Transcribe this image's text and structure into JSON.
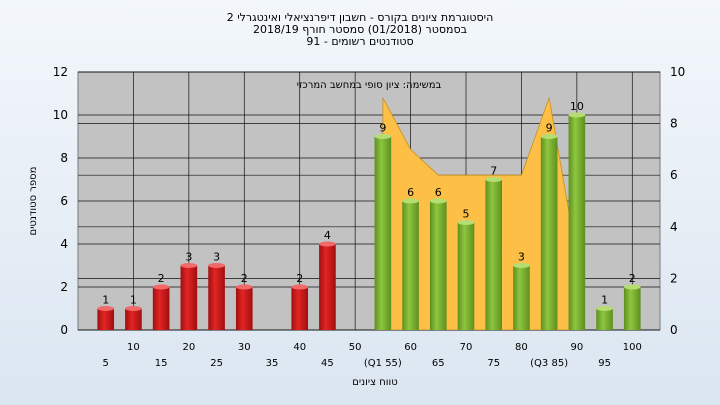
{
  "chart_data": {
    "type": "bar",
    "title_lines": [
      "היסטוגרמת ציונים בקורס - חשבון דיפרנציאלי ואינטגרלי 2",
      "בסמסטר  (01/2018)  סמסטר חורף 2018/19",
      "סטודנטים רשומים - 91"
    ],
    "xlabel": "טווח ציונים",
    "ylabel": "מספר סטודנטים",
    "annotation": "במשימה: ציון סופי במחשב המרכזי",
    "left_axis": {
      "ylim": [
        0,
        12
      ],
      "ticks": [
        "0",
        "2",
        "4",
        "6",
        "8",
        "10",
        "12"
      ]
    },
    "right_axis": {
      "ylim": [
        0,
        10
      ],
      "ticks": [
        "0",
        "2",
        "4",
        "6",
        "8",
        "10"
      ]
    },
    "x_ticks_top": [
      "10",
      "20",
      "30",
      "40",
      "50",
      "60",
      "70",
      "80",
      "90",
      "100"
    ],
    "x_ticks_bottom": [
      "5",
      "15",
      "25",
      "35",
      "45",
      "(Q1 55)",
      "65",
      "75",
      "(Q3 85)",
      "95"
    ],
    "categories": [
      "5",
      "10",
      "15",
      "20",
      "25",
      "30",
      "35",
      "40",
      "45",
      "50",
      "55",
      "60",
      "65",
      "70",
      "75",
      "80",
      "85",
      "90",
      "95",
      "100"
    ],
    "values": [
      1,
      1,
      2,
      3,
      3,
      2,
      0,
      2,
      4,
      0,
      9,
      6,
      6,
      5,
      7,
      3,
      9,
      10,
      1,
      2
    ],
    "value_labels": [
      "1",
      "1",
      "2",
      "3",
      "3",
      "2",
      "",
      "2",
      "4",
      "",
      "9",
      "6",
      "6",
      "5",
      "7",
      "3",
      "9",
      "10",
      "1",
      "2"
    ],
    "failing_categories": [
      "5",
      "10",
      "15",
      "20",
      "25",
      "30",
      "35",
      "40",
      "45"
    ],
    "area_series": {
      "x": [
        55,
        60,
        65,
        70,
        75,
        80,
        85,
        90
      ],
      "values": [
        9,
        7,
        6,
        6,
        6,
        6,
        9,
        2.8
      ]
    },
    "colors": {
      "fail_bar": "#e32424",
      "pass_bar": "#8ec63f",
      "area_fill": "#fdbf45",
      "plot_bg": "#c2c2c2"
    },
    "grid": true
  }
}
